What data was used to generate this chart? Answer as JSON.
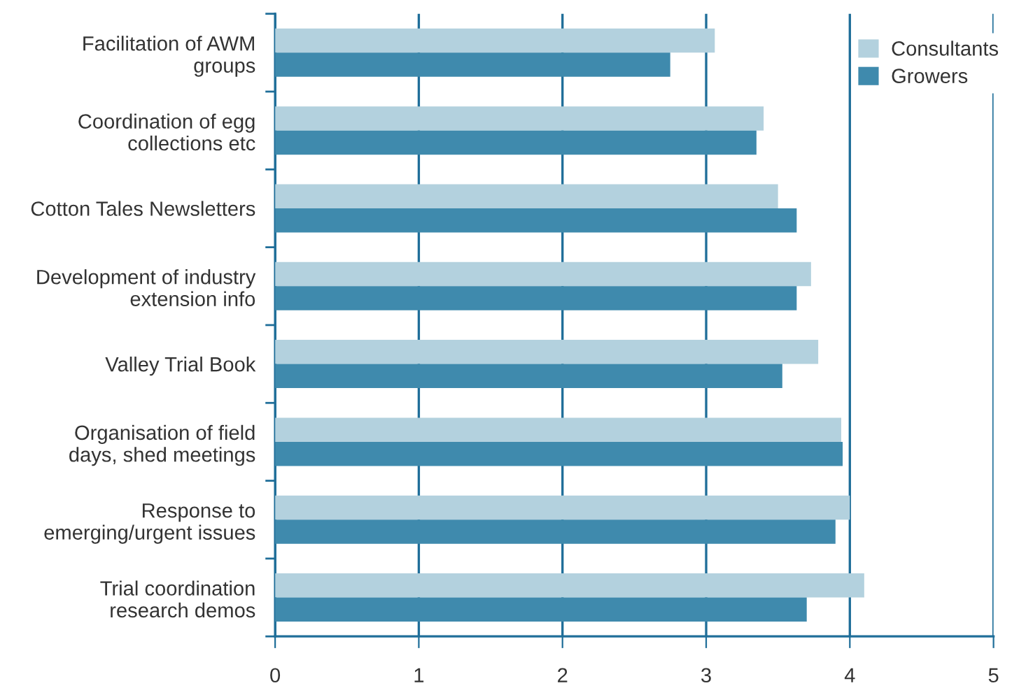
{
  "chart_data": {
    "type": "bar",
    "orientation": "horizontal",
    "categories": [
      "Facilitation of AWM\ngroups",
      "Coordination of egg\ncollections etc",
      "Cotton Tales Newsletters",
      "Development of industry\nextension info",
      "Valley Trial Book",
      "Organisation of field\ndays, shed meetings",
      "Response to\nemerging/urgent issues",
      "Trial coordination\nresearch demos"
    ],
    "series": [
      {
        "name": "Consultants",
        "color": "#b3d1de",
        "values": [
          3.06,
          3.4,
          3.5,
          3.73,
          3.78,
          3.94,
          4.0,
          4.1
        ]
      },
      {
        "name": "Growers",
        "color": "#3f8aad",
        "values": [
          2.75,
          3.35,
          3.63,
          3.63,
          3.53,
          3.95,
          3.9,
          3.7
        ]
      }
    ],
    "xlim": [
      0,
      5
    ],
    "xticks": [
      0,
      1,
      2,
      3,
      4,
      5
    ],
    "grid": "x",
    "legend": "top right"
  }
}
